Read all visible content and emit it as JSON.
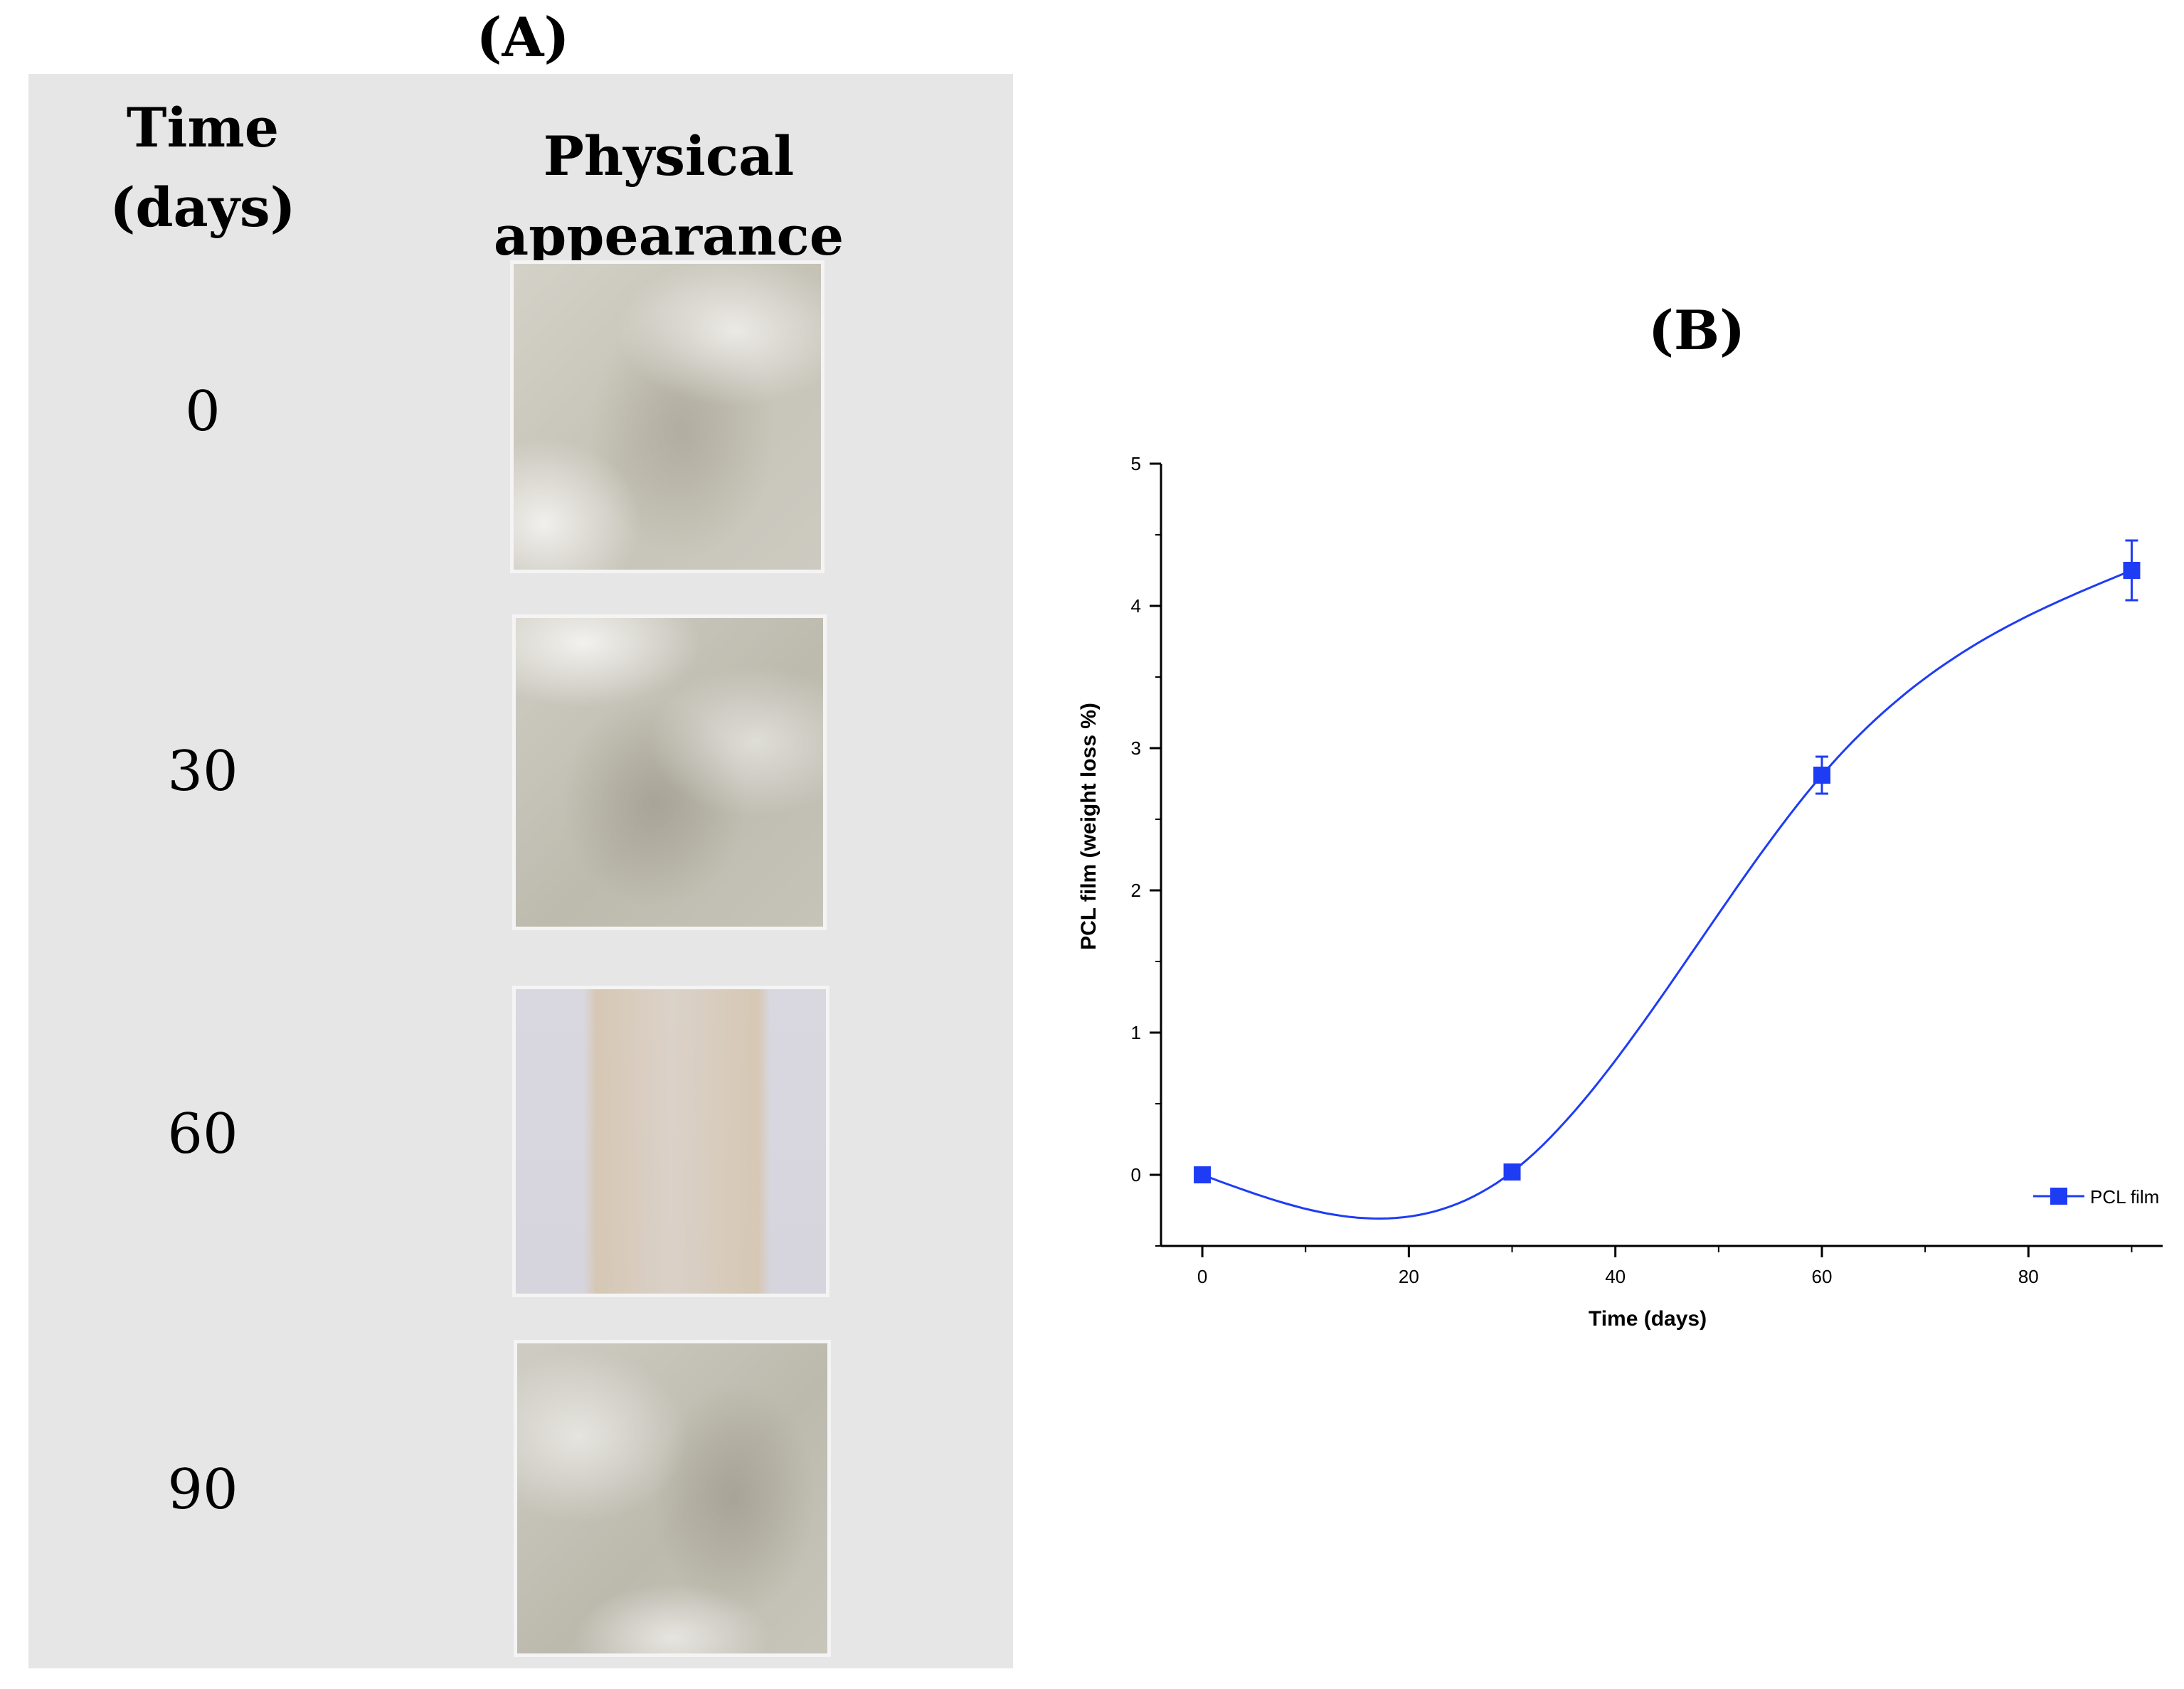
{
  "panel_a": {
    "label": "(A)",
    "header_time": "Time\n(days)",
    "header_appearance": "Physical appearance",
    "rows": [
      {
        "day": "0",
        "photo": "PCL film sample photo, day 0"
      },
      {
        "day": "30",
        "photo": "PCL film sample photo, day 30"
      },
      {
        "day": "60",
        "photo": "PCL film sample photo, day 60"
      },
      {
        "day": "90",
        "photo": "PCL film sample photo, day 90"
      }
    ]
  },
  "panel_b": {
    "label": "(B)"
  },
  "colors": {
    "series": "#1f3cf5",
    "panel_a_background": "#e6e6e6"
  },
  "chart_data": {
    "type": "line",
    "title": "",
    "xlabel": "Time (days)",
    "ylabel": "PCL film (weight loss %)",
    "xlim": [
      -4,
      93
    ],
    "ylim": [
      -0.5,
      5
    ],
    "xticks": [
      0,
      20,
      40,
      60,
      80
    ],
    "yticks": [
      0,
      1,
      2,
      3,
      4,
      5
    ],
    "grid": false,
    "legend_position": "bottom-right",
    "series": [
      {
        "name": "PCL film",
        "marker": "square",
        "smooth": true,
        "x": [
          0,
          30,
          60,
          90
        ],
        "y": [
          0.0,
          0.02,
          2.81,
          4.25
        ],
        "error": [
          0.0,
          0.0,
          0.13,
          0.21
        ]
      }
    ]
  }
}
